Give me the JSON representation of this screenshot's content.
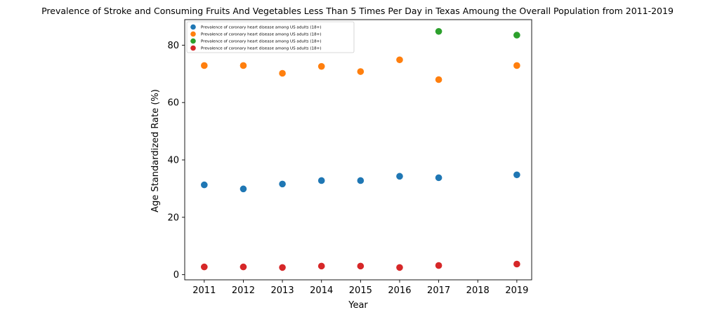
{
  "chart_data": {
    "type": "scatter",
    "title": "Prevalence of Stroke and Consuming Fruits And Vegetables Less Than 5 Times Per Day in Texas Amoung the Overall Population from 2011-2019",
    "xlabel": "Year",
    "ylabel": "Age Standardized Rate (%)",
    "xlim": [
      2010.5,
      2019.38
    ],
    "ylim": [
      -1.8,
      88.9
    ],
    "xticks": [
      2011,
      2012,
      2013,
      2014,
      2015,
      2016,
      2017,
      2018,
      2019
    ],
    "yticks": [
      0,
      20,
      40,
      60,
      80
    ],
    "grid": false,
    "legend_position": "top-left",
    "series": [
      {
        "name": "Prevalence of coronary heart disease among US adults (18+)",
        "color": "#1f77b4",
        "x": [
          2011,
          2012,
          2013,
          2014,
          2015,
          2016,
          2017,
          2019
        ],
        "y": [
          31.3,
          29.9,
          31.6,
          32.8,
          32.8,
          34.3,
          33.8,
          34.8
        ]
      },
      {
        "name": "Prevalence of coronary heart disease among US adults (18+)",
        "color": "#ff7f0e",
        "x": [
          2011,
          2012,
          2013,
          2014,
          2015,
          2016,
          2017,
          2019
        ],
        "y": [
          72.9,
          72.9,
          70.2,
          72.6,
          70.8,
          74.9,
          68.0,
          72.9
        ]
      },
      {
        "name": "Prevalence of coronary heart disease among US adults (18+)",
        "color": "#2ca02c",
        "x": [
          2017,
          2019
        ],
        "y": [
          84.8,
          83.5
        ]
      },
      {
        "name": "Prevalence of coronary heart disease among US adults (18+)",
        "color": "#d62728",
        "x": [
          2011,
          2012,
          2013,
          2014,
          2015,
          2016,
          2017,
          2019
        ],
        "y": [
          2.7,
          2.7,
          2.5,
          3.0,
          3.0,
          2.5,
          3.2,
          3.7
        ]
      }
    ]
  }
}
